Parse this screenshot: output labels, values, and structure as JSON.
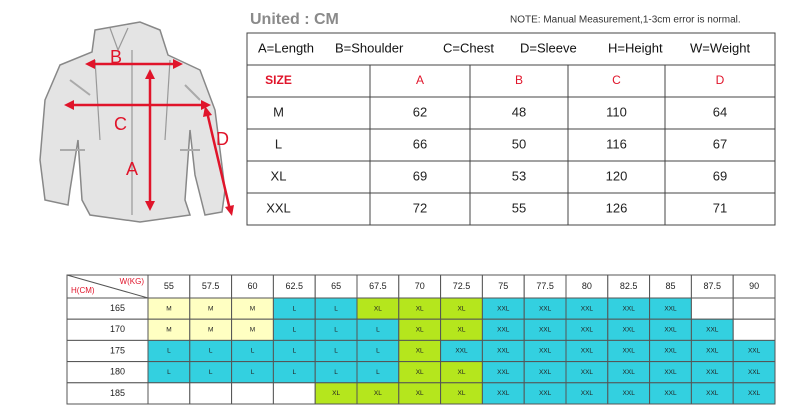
{
  "header": {
    "unit": "United : CM",
    "note": "NOTE: Manual Measurement,1-3cm error is normal."
  },
  "jacket": {
    "labels": [
      "A",
      "B",
      "C",
      "D"
    ]
  },
  "size_table": {
    "legend": [
      "A=Length",
      "B=Shoulder",
      "C=Chest",
      "D=Sleeve",
      "H=Height",
      "W=Weight"
    ],
    "columns": [
      "SIZE",
      "A",
      "B",
      "C",
      "D"
    ],
    "rows": [
      [
        "M",
        "62",
        "48",
        "110",
        "64"
      ],
      [
        "L",
        "66",
        "50",
        "116",
        "67"
      ],
      [
        "XL",
        "69",
        "53",
        "120",
        "69"
      ],
      [
        "XXL",
        "72",
        "55",
        "126",
        "71"
      ]
    ]
  },
  "fit_chart": {
    "weight_label": "W(KG)",
    "height_label": "H(CM)",
    "weights": [
      "55",
      "57.5",
      "60",
      "62.5",
      "65",
      "67.5",
      "70",
      "72.5",
      "75",
      "77.5",
      "80",
      "82.5",
      "85",
      "87.5",
      "90"
    ],
    "rows": [
      {
        "height": "165",
        "sizes": [
          "M",
          "M",
          "M",
          "L",
          "L",
          "XL",
          "XL",
          "XL",
          "XXL",
          "XXL",
          "XXL",
          "XXL",
          "XXL",
          null,
          null
        ]
      },
      {
        "height": "170",
        "sizes": [
          "M",
          "M",
          "M",
          "L",
          "L",
          "L",
          "XL",
          "XL",
          "XXL",
          "XXL",
          "XXL",
          "XXL",
          "XXL",
          "XXL",
          null
        ]
      },
      {
        "height": "175",
        "sizes": [
          "L",
          "L",
          "L",
          "L",
          "L",
          "L",
          "XL",
          "XXL",
          "XXL",
          "XXL",
          "XXL",
          "XXL",
          "XXL",
          "XXL",
          "XXL"
        ]
      },
      {
        "height": "180",
        "sizes": [
          "L",
          "L",
          "L",
          "L",
          "L",
          "L",
          "XL",
          "XL",
          "XXL",
          "XXL",
          "XXL",
          "XXL",
          "XXL",
          "XXL",
          "XXL"
        ]
      },
      {
        "height": "185",
        "sizes": [
          null,
          null,
          null,
          null,
          "XL",
          "XL",
          "XL",
          "XL",
          "XXL",
          "XXL",
          "XXL",
          "XXL",
          "XXL",
          "XXL",
          "XXL"
        ]
      }
    ],
    "colors": {
      "M": "#ffffc2",
      "L": "#33d0e0",
      "XL": "#b5e61d",
      "XXL": "#33d0e0"
    }
  }
}
